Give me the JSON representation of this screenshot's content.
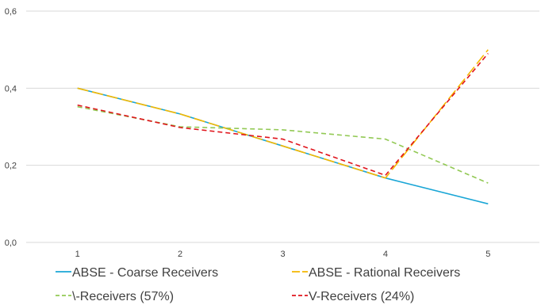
{
  "chart_data": {
    "type": "line",
    "title": "",
    "xlabel": "",
    "ylabel": "",
    "x": [
      1,
      2,
      3,
      4,
      5
    ],
    "x_tick_labels": [
      "1",
      "2",
      "3",
      "4",
      "5"
    ],
    "ylim": [
      0,
      0.6
    ],
    "y_ticks": [
      0,
      0.2,
      0.4,
      0.6
    ],
    "y_tick_labels": [
      "0,0",
      "0,2",
      "0,4",
      "0,6"
    ],
    "grid": "horizontal",
    "legend_position": "bottom",
    "series": [
      {
        "name": "ABSE - Coarse Receivers",
        "values": [
          0.4,
          0.333,
          0.25,
          0.167,
          0.1
        ],
        "color": "#1aa6d6",
        "dash": "solid"
      },
      {
        "name": "ABSE - Rational Receivers",
        "values": [
          0.4,
          0.333,
          0.25,
          0.167,
          0.5
        ],
        "color": "#f5b800",
        "dash": "long-dash"
      },
      {
        "name": "\\-Receivers (57%)",
        "values": [
          0.352,
          0.3,
          0.292,
          0.268,
          0.154
        ],
        "color": "#92c954",
        "dash": "dash"
      },
      {
        "name": "V-Receivers (24%)",
        "values": [
          0.356,
          0.298,
          0.268,
          0.174,
          0.49
        ],
        "color": "#e0141c",
        "dash": "dash"
      }
    ]
  }
}
